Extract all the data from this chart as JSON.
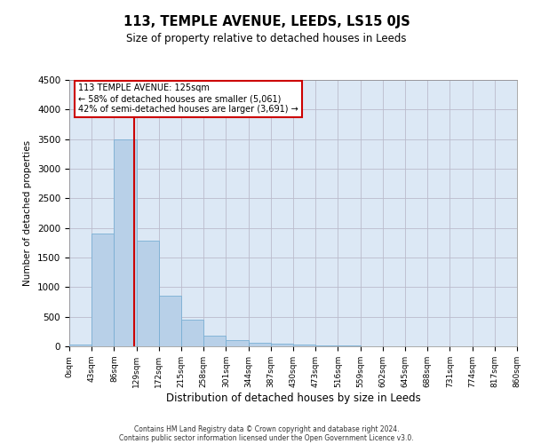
{
  "title": "113, TEMPLE AVENUE, LEEDS, LS15 0JS",
  "subtitle": "Size of property relative to detached houses in Leeds",
  "xlabel": "Distribution of detached houses by size in Leeds",
  "ylabel": "Number of detached properties",
  "bar_values": [
    30,
    1900,
    3500,
    1780,
    850,
    450,
    175,
    100,
    60,
    50,
    30,
    20,
    10,
    0,
    0,
    0,
    0,
    0,
    0,
    0
  ],
  "bin_labels": [
    "0sqm",
    "43sqm",
    "86sqm",
    "129sqm",
    "172sqm",
    "215sqm",
    "258sqm",
    "301sqm",
    "344sqm",
    "387sqm",
    "430sqm",
    "473sqm",
    "516sqm",
    "559sqm",
    "602sqm",
    "645sqm",
    "688sqm",
    "731sqm",
    "774sqm",
    "817sqm",
    "860sqm"
  ],
  "ylim": [
    0,
    4500
  ],
  "yticks": [
    0,
    500,
    1000,
    1500,
    2000,
    2500,
    3000,
    3500,
    4000,
    4500
  ],
  "bar_color": "#b8d0e8",
  "bar_edge_color": "#7aafd4",
  "vline_color": "#cc0000",
  "vline_x": 125,
  "annotation_title": "113 TEMPLE AVENUE: 125sqm",
  "annotation_line1": "← 58% of detached houses are smaller (5,061)",
  "annotation_line2": "42% of semi-detached houses are larger (3,691) →",
  "annotation_box_color": "#ffffff",
  "annotation_box_edge": "#cc0000",
  "footer1": "Contains HM Land Registry data © Crown copyright and database right 2024.",
  "footer2": "Contains public sector information licensed under the Open Government Licence v3.0.",
  "bg_color": "#ffffff",
  "plot_bg_color": "#dce8f5",
  "grid_color": "#bbbbcc",
  "bin_width": 43,
  "num_bins": 20
}
